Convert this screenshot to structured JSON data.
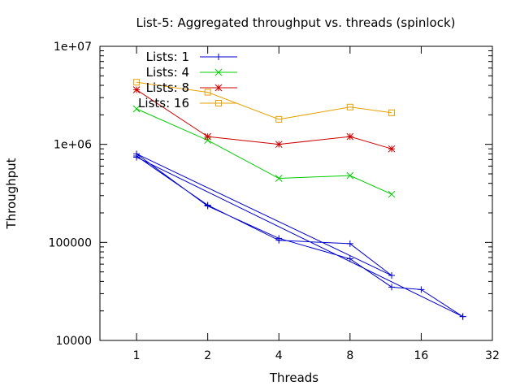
{
  "chart_data": {
    "type": "line",
    "title": "List-5: Aggregated throughput vs. threads (spinlock)",
    "xlabel": "Threads",
    "ylabel": "Throughput",
    "x_scale": "log2",
    "y_scale": "log10",
    "xlim": [
      0.7,
      32
    ],
    "ylim": [
      10000,
      10000000
    ],
    "x_ticks": [
      1,
      2,
      4,
      8,
      16,
      32
    ],
    "x_tick_labels": [
      "1",
      "2",
      "4",
      "8",
      "16",
      "32"
    ],
    "y_ticks": [
      10000,
      100000,
      1000000,
      10000000
    ],
    "y_tick_labels": [
      "10000",
      "100000",
      "1e+06",
      "1e+07"
    ],
    "grid": false,
    "legend_position": "top-left",
    "series": [
      {
        "name": "Lists: 1",
        "color": "#0000cc",
        "marker": "plus",
        "points": [
          [
            1,
            760000
          ],
          [
            2,
            240000
          ],
          [
            4,
            105000
          ],
          [
            8,
            97000
          ],
          [
            12,
            46000
          ],
          [
            1,
            800000
          ],
          [
            2,
            235000
          ],
          [
            4,
            110000
          ],
          [
            8,
            68000
          ],
          [
            12,
            35000
          ],
          [
            16,
            33000
          ],
          [
            24,
            17500
          ],
          [
            1,
            740000
          ],
          [
            24,
            17500
          ]
        ]
      },
      {
        "name": "Lists: 4",
        "color": "#00cc00",
        "marker": "x",
        "points": [
          [
            1,
            2300000
          ],
          [
            2,
            1100000
          ],
          [
            4,
            450000
          ],
          [
            8,
            480000
          ],
          [
            12,
            310000
          ]
        ]
      },
      {
        "name": "Lists: 8",
        "color": "#cc0000",
        "marker": "star",
        "points": [
          [
            1,
            3600000
          ],
          [
            2,
            1200000
          ],
          [
            4,
            1000000
          ],
          [
            8,
            1200000
          ],
          [
            12,
            900000
          ]
        ]
      },
      {
        "name": "Lists: 16",
        "color": "#e6a000",
        "marker": "square",
        "points": [
          [
            1,
            4300000
          ],
          [
            2,
            3400000
          ],
          [
            4,
            1800000
          ],
          [
            8,
            2400000
          ],
          [
            12,
            2100000
          ]
        ]
      }
    ]
  }
}
